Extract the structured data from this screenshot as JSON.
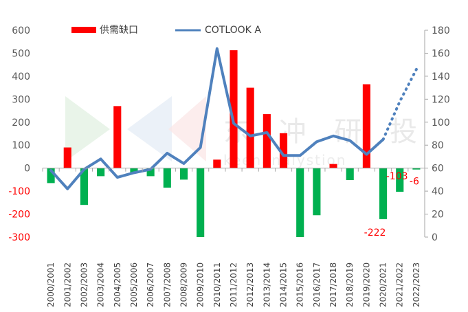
{
  "chart_data": {
    "type": "bar+line",
    "categories": [
      "2000/2001",
      "2001/2002",
      "2002/2003",
      "2003/2004",
      "2004/2005",
      "2005/2006",
      "2006/2007",
      "2007/2008",
      "2008/2009",
      "2009/2010",
      "2010/2011",
      "2011/2012",
      "2012/2013",
      "2013/2014",
      "2014/2015",
      "2015/2016",
      "2016/2017",
      "2017/2018",
      "2018/2019",
      "2019/2020",
      "2020/2021",
      "2021/2022",
      "2022/2023"
    ],
    "series": [
      {
        "name": "供需缺口",
        "type": "bar",
        "axis": "left",
        "values": [
          -65,
          90,
          -160,
          -35,
          270,
          -20,
          -35,
          -85,
          -50,
          -300,
          37,
          513,
          350,
          235,
          152,
          -300,
          -205,
          18,
          -52,
          365,
          -222,
          -103,
          -6
        ],
        "color_positive": "#ff0000",
        "color_negative": "#00b050"
      },
      {
        "name": "COTLOOK A",
        "type": "line",
        "axis": "right",
        "values": [
          58,
          42,
          59,
          68,
          52,
          56,
          59,
          73,
          64,
          78,
          164,
          99,
          88,
          91,
          71,
          71,
          83,
          88,
          84,
          72,
          85,
          null,
          null
        ],
        "projected": [
          null,
          null,
          null,
          null,
          null,
          null,
          null,
          null,
          null,
          null,
          null,
          null,
          null,
          null,
          null,
          null,
          null,
          null,
          null,
          null,
          85,
          118,
          146
        ],
        "color": "#4f81bd"
      }
    ],
    "y_left": {
      "min": -300,
      "max": 600,
      "ticks": [
        600,
        500,
        400,
        300,
        200,
        100,
        0,
        -100,
        -200,
        -300
      ]
    },
    "y_right": {
      "min": 0,
      "max": 180,
      "ticks": [
        180,
        160,
        140,
        120,
        100,
        80,
        60,
        40,
        20,
        0
      ]
    },
    "data_labels": [
      {
        "category": "2020/2021",
        "text": "-222"
      },
      {
        "category": "2021/2022",
        "text": "-103"
      },
      {
        "category": "2022/2023",
        "text": "-6"
      }
    ],
    "legend_position": "top",
    "grid": false
  },
  "watermark": {
    "text": "东 冲 研 投",
    "sub": "keenanalystion"
  }
}
